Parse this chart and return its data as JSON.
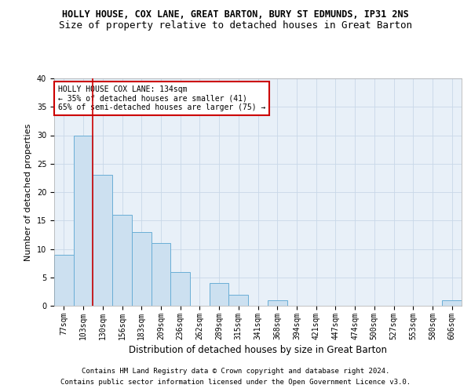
{
  "title1": "HOLLY HOUSE, COX LANE, GREAT BARTON, BURY ST EDMUNDS, IP31 2NS",
  "title2": "Size of property relative to detached houses in Great Barton",
  "xlabel": "Distribution of detached houses by size in Great Barton",
  "ylabel": "Number of detached properties",
  "footnote1": "Contains HM Land Registry data © Crown copyright and database right 2024.",
  "footnote2": "Contains public sector information licensed under the Open Government Licence v3.0.",
  "bar_labels": [
    "77sqm",
    "103sqm",
    "130sqm",
    "156sqm",
    "183sqm",
    "209sqm",
    "236sqm",
    "262sqm",
    "289sqm",
    "315sqm",
    "341sqm",
    "368sqm",
    "394sqm",
    "421sqm",
    "447sqm",
    "474sqm",
    "500sqm",
    "527sqm",
    "553sqm",
    "580sqm",
    "606sqm"
  ],
  "bar_values": [
    9,
    30,
    23,
    16,
    13,
    11,
    6,
    0,
    4,
    2,
    0,
    1,
    0,
    0,
    0,
    0,
    0,
    0,
    0,
    0,
    1
  ],
  "bar_color": "#cce0f0",
  "bar_edge_color": "#6aaed6",
  "vline_color": "#cc0000",
  "annotation_box_text": "HOLLY HOUSE COX LANE: 134sqm\n← 35% of detached houses are smaller (41)\n65% of semi-detached houses are larger (75) →",
  "annotation_box_color": "#ffffff",
  "annotation_box_edge_color": "#cc0000",
  "ylim": [
    0,
    40
  ],
  "yticks": [
    0,
    5,
    10,
    15,
    20,
    25,
    30,
    35,
    40
  ],
  "grid_color": "#c8d8e8",
  "background_color": "#e8f0f8",
  "title1_fontsize": 8.5,
  "title2_fontsize": 9,
  "xlabel_fontsize": 8.5,
  "ylabel_fontsize": 8,
  "tick_fontsize": 7,
  "annotation_fontsize": 7,
  "footnote_fontsize": 6.5
}
